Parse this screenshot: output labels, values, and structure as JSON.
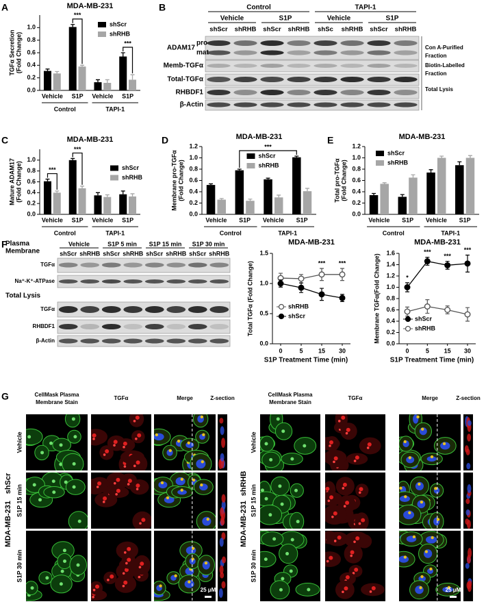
{
  "panel_labels": [
    "A",
    "B",
    "C",
    "D",
    "E",
    "F",
    "G"
  ],
  "chart_data": [
    {
      "type": "bar",
      "title": "MDA-MB-231",
      "y_label": [
        "TGFα  Secretion",
        "(Fold Change)"
      ],
      "categories": [
        "Vehicle",
        "S1P",
        "Vehicle",
        "S1P"
      ],
      "groups": [
        "Control",
        "TAPI-1"
      ],
      "series": [
        {
          "name": "shScr",
          "color": "#000000",
          "values": [
            0.31,
            1.01,
            0.13,
            0.54
          ],
          "errors": [
            0.03,
            0.04,
            0.04,
            0.06
          ]
        },
        {
          "name": "shRHB",
          "color": "#a6a6a6",
          "values": [
            0.27,
            0.38,
            0.12,
            0.17
          ],
          "errors": [
            0.03,
            0.02,
            0.05,
            0.08
          ]
        }
      ],
      "ylim": [
        0,
        1.2
      ],
      "yticks": [
        {
          "value": 0,
          "label": "0.0"
        },
        0.2,
        0.4,
        0.6,
        0.8,
        {
          "value": 1,
          "label": "1.0"
        }
      ],
      "legend": "upper right",
      "annotations": [
        "***",
        "***"
      ]
    },
    {
      "type": "bar",
      "title": "MDA-MB-231",
      "y_label": [
        "Mature ADAM17",
        "(Fold Change)"
      ],
      "categories": [
        "Vehicle",
        "S1P",
        "Vehicle",
        "S1P"
      ],
      "groups": [
        "Control",
        "TAPI-1"
      ],
      "series": [
        {
          "name": "shScr",
          "color": "#000000",
          "values": [
            0.61,
            1.0,
            0.35,
            0.37
          ],
          "errors": [
            0.04,
            0.03,
            0.05,
            0.06
          ]
        },
        {
          "name": "shRHB",
          "color": "#a6a6a6",
          "values": [
            0.4,
            0.48,
            0.32,
            0.33
          ],
          "errors": [
            0.03,
            0.04,
            0.04,
            0.05
          ]
        }
      ],
      "ylim": [
        0,
        1.2
      ],
      "yticks": [
        {
          "value": 0,
          "label": "0.0"
        },
        0.2,
        0.4,
        0.6,
        0.8,
        {
          "value": 1,
          "label": "1.0"
        }
      ],
      "legend": "center right",
      "annotations": [
        "***",
        "***"
      ]
    },
    {
      "type": "bar",
      "title": "MDA-MB-231",
      "y_label": [
        "Membrane pro-TGFα",
        "(Fold Change)"
      ],
      "categories": [
        "Vehicle",
        "S1P",
        "Vehicle",
        "S1P"
      ],
      "groups": [
        "Control",
        "TAPI-1"
      ],
      "series": [
        {
          "name": "shScr",
          "color": "#000000",
          "values": [
            0.52,
            0.78,
            0.62,
            1.01
          ],
          "errors": [
            0.02,
            0.02,
            0.02,
            0.02
          ]
        },
        {
          "name": "shRHB",
          "color": "#a6a6a6",
          "values": [
            0.26,
            0.24,
            0.3,
            0.41
          ],
          "errors": [
            0.02,
            0.03,
            0.04,
            0.05
          ]
        }
      ],
      "ylim": [
        0,
        1.2
      ],
      "yticks": [
        {
          "value": 0,
          "label": "0.0"
        },
        0.2,
        0.4,
        0.6,
        0.8,
        {
          "value": 1,
          "label": "1.0"
        },
        1.2
      ],
      "legend": "upper center",
      "annotations": [
        "***"
      ]
    },
    {
      "type": "bar",
      "title": "MDA-MB-231",
      "y_label": [
        "Total pro-TGFα",
        "(Fold Change)"
      ],
      "categories": [
        "Vehicle",
        "S1P",
        "Vehicle",
        "S1P"
      ],
      "groups": [
        "Control",
        "TAPI-1"
      ],
      "series": [
        {
          "name": "shScr",
          "color": "#000000",
          "values": [
            0.34,
            0.31,
            0.74,
            0.87
          ],
          "errors": [
            0.03,
            0.04,
            0.05,
            0.06
          ]
        },
        {
          "name": "shRHB",
          "color": "#a6a6a6",
          "values": [
            0.54,
            0.65,
            1.0,
            1.0
          ],
          "errors": [
            0.02,
            0.05,
            0.03,
            0.04
          ]
        }
      ],
      "ylim": [
        0,
        1.2
      ],
      "yticks": [
        {
          "value": 0,
          "label": "0.0"
        },
        0.2,
        0.4,
        0.6,
        0.8,
        {
          "value": 1,
          "label": "1.0"
        },
        1.2
      ],
      "legend": "upper left",
      "annotations": []
    },
    {
      "type": "line",
      "title": "MDA-MB-231",
      "y_label": [
        "Total TGFα (Fold Change)"
      ],
      "x_label": "S1P Treatment Time (min)",
      "categories": [
        "0",
        "5",
        "15",
        "30"
      ],
      "series": [
        {
          "name": "shRHB",
          "color": "#555555",
          "marker_fill": "#ffffff",
          "values": [
            1.09,
            1.08,
            1.15,
            1.15
          ],
          "errors": [
            0.08,
            0.07,
            0.1,
            0.1
          ]
        },
        {
          "name": "shScr",
          "color": "#000000",
          "marker_fill": "#000000",
          "values": [
            1.0,
            0.93,
            0.82,
            0.76
          ],
          "errors": [
            0.06,
            0.08,
            0.1,
            0.06
          ]
        }
      ],
      "ylim": [
        0,
        1.5
      ],
      "yticks": [
        {
          "value": 0,
          "label": "0.0"
        },
        0.5,
        {
          "value": 1,
          "label": "1.0"
        },
        1.5
      ],
      "legend": "center left",
      "annotations": [
        "***",
        "***"
      ]
    },
    {
      "type": "line",
      "title": "MDA-MB-231",
      "y_label": [
        "Membrane TGFα(Fold Change)"
      ],
      "x_label": "S1P Treatment Time (min)",
      "categories": [
        "0",
        "5",
        "15",
        "30"
      ],
      "series": [
        {
          "name": "shScr",
          "color": "#000000",
          "marker_fill": "#000000",
          "values": [
            1.0,
            1.46,
            1.39,
            1.42
          ],
          "errors": [
            0.08,
            0.07,
            0.07,
            0.15
          ]
        },
        {
          "name": "shRHB",
          "color": "#555555",
          "marker_fill": "#ffffff",
          "values": [
            0.57,
            0.66,
            0.6,
            0.52
          ],
          "errors": [
            0.08,
            0.12,
            0.07,
            0.12
          ]
        }
      ],
      "ylim": [
        0,
        1.6
      ],
      "yticks": [
        {
          "value": 0,
          "label": "0.0"
        },
        0.2,
        0.4,
        0.6,
        0.8,
        {
          "value": 1,
          "label": "1.0"
        },
        1.2,
        1.4,
        1.6
      ],
      "legend": "lower left",
      "annotations": [
        "*",
        "***",
        "***",
        "***"
      ]
    }
  ],
  "blot_b": {
    "groups": [
      "Control",
      "TAPI-1"
    ],
    "treatments": [
      "Vehicle",
      "S1P",
      "Vehicle",
      "S1P"
    ],
    "lanes": [
      "shScr",
      "shRHB",
      "shScr",
      "shRHB",
      "shSc",
      "shRHB",
      "shScr",
      "shRHB"
    ],
    "rows": [
      {
        "label": "ADAM17",
        "sublabels": [
          "pro",
          "mat"
        ]
      },
      {
        "label": "Memb-TGFα"
      },
      {
        "label": "Total-TGFα"
      },
      {
        "label": "RHBDF1"
      },
      {
        "label": "β-Actin"
      }
    ],
    "fractions": [
      [
        "Con A-Purified",
        "Fraction"
      ],
      [
        "Biotin-Labelled",
        "Fraction"
      ],
      [
        "Total Lysis"
      ]
    ]
  },
  "blot_f": {
    "sections": [
      [
        "Plasma",
        "Membrane"
      ],
      [
        "Total Lysis"
      ]
    ],
    "treatments": [
      "Vehicle",
      "S1P 5 min",
      "S1P 15 min",
      "S1P 30 min"
    ],
    "lanes": [
      "shScr",
      "shRHB",
      "shScr",
      "shRHB",
      "shScr",
      "shRHB",
      "shScr",
      "shRHB"
    ],
    "rows": [
      "TGFα",
      "Na⁺-K⁺-ATPase",
      "TGFα",
      "RHBDF1",
      "β-Actin"
    ]
  },
  "panel_g": {
    "columns": [
      [
        "CellMask Plasma",
        "Membrane Stain"
      ],
      [
        "TGFα"
      ],
      [
        "Merge"
      ],
      [
        "Z-section"
      ]
    ],
    "rows": [
      "Vehicle",
      "S1P 15 min",
      "S1P 30 min"
    ],
    "panels": [
      {
        "cell_line": "MDA-MB-231",
        "condition": "shScr"
      },
      {
        "cell_line": "MDA-MB-231",
        "condition": "shRHB"
      }
    ],
    "scale_bar": "25 μM"
  }
}
